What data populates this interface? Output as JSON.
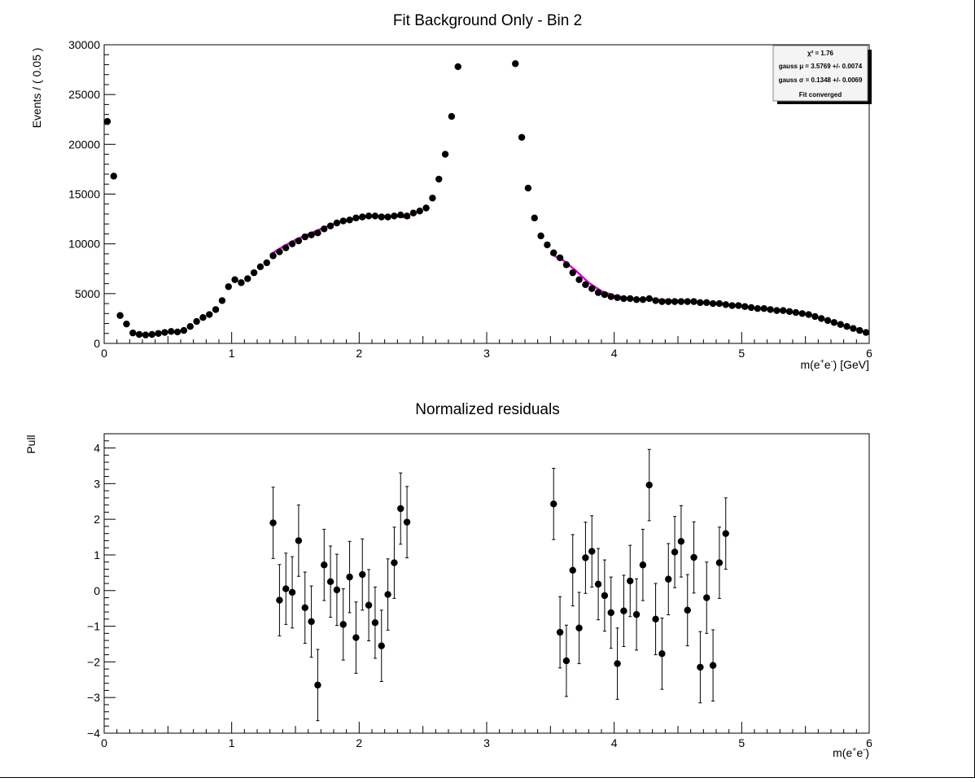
{
  "chart_data": [
    {
      "type": "scatter",
      "title": "Fit Background Only - Bin 2",
      "xlabel_main": "m(e",
      "xlabel_sup1": "+",
      "xlabel_mid": "e",
      "xlabel_sup2": "-",
      "xlabel_tail": ") [GeV]",
      "ylabel": "Events / ( 0.05 )",
      "xlim": [
        0,
        6
      ],
      "ylim": [
        0,
        30000
      ],
      "xticks": [
        "0",
        "1",
        "2",
        "3",
        "4",
        "5",
        "6"
      ],
      "yticks": [
        "0",
        "5000",
        "10000",
        "15000",
        "20000",
        "25000",
        "30000"
      ],
      "grid": false,
      "series": [
        {
          "kind": "points",
          "x": [
            0.025,
            0.075,
            0.125,
            0.175,
            0.225,
            0.275,
            0.325,
            0.375,
            0.425,
            0.475,
            0.525,
            0.575,
            0.625,
            0.675,
            0.725,
            0.775,
            0.825,
            0.875,
            0.925,
            0.975,
            1.025,
            1.075,
            1.125,
            1.175,
            1.225,
            1.275,
            1.325,
            1.375,
            1.425,
            1.475,
            1.525,
            1.575,
            1.625,
            1.675,
            1.725,
            1.775,
            1.825,
            1.875,
            1.925,
            1.975,
            2.025,
            2.075,
            2.125,
            2.175,
            2.225,
            2.275,
            2.325,
            2.375,
            2.425,
            2.475,
            2.525,
            2.575,
            2.625,
            2.675,
            2.725,
            2.775,
            3.225,
            3.275,
            3.325,
            3.375,
            3.425,
            3.475,
            3.525,
            3.575,
            3.625,
            3.675,
            3.725,
            3.775,
            3.825,
            3.875,
            3.925,
            3.975,
            4.025,
            4.075,
            4.125,
            4.175,
            4.225,
            4.275,
            4.325,
            4.375,
            4.425,
            4.475,
            4.525,
            4.575,
            4.625,
            4.675,
            4.725,
            4.775,
            4.825,
            4.875,
            4.925,
            4.975,
            5.025,
            5.075,
            5.125,
            5.175,
            5.225,
            5.275,
            5.325,
            5.375,
            5.425,
            5.475,
            5.525,
            5.575,
            5.625,
            5.675,
            5.725,
            5.775,
            5.825,
            5.875,
            5.925,
            5.975
          ],
          "y": [
            22300,
            16800,
            2800,
            1950,
            1050,
            900,
            850,
            900,
            1000,
            1100,
            1200,
            1150,
            1300,
            1700,
            2200,
            2600,
            2900,
            3400,
            4300,
            5700,
            6400,
            6100,
            6500,
            7100,
            7700,
            8100,
            8800,
            9200,
            9600,
            10000,
            10300,
            10700,
            10900,
            11100,
            11500,
            11800,
            12100,
            12300,
            12400,
            12600,
            12700,
            12800,
            12800,
            12700,
            12700,
            12800,
            12900,
            12800,
            13100,
            13300,
            13600,
            14600,
            16500,
            19000,
            22800,
            27800,
            28100,
            20700,
            15600,
            12600,
            10800,
            9900,
            9100,
            8600,
            7900,
            7100,
            6400,
            5900,
            5500,
            5100,
            4900,
            4700,
            4600,
            4500,
            4500,
            4400,
            4400,
            4500,
            4300,
            4200,
            4200,
            4200,
            4200,
            4200,
            4200,
            4100,
            4100,
            4000,
            4000,
            3900,
            3800,
            3800,
            3700,
            3600,
            3500,
            3500,
            3400,
            3300,
            3300,
            3200,
            3100,
            3000,
            2900,
            2700,
            2500,
            2300,
            2100,
            1900,
            1700,
            1500,
            1300,
            1100
          ]
        },
        {
          "kind": "fit",
          "color": "#e000d8",
          "x": [
            1.3,
            1.4,
            1.5,
            1.6,
            1.7,
            1.8,
            1.9,
            2.0,
            2.1,
            2.2,
            2.3,
            2.4
          ],
          "y": [
            8900,
            9700,
            10400,
            10950,
            11500,
            12000,
            12350,
            12600,
            12750,
            12800,
            12750,
            12600
          ]
        },
        {
          "kind": "fit",
          "color": "#e000d8",
          "x": [
            3.5,
            3.6,
            3.7,
            3.8,
            3.9,
            4.0,
            4.1,
            4.2,
            4.3,
            4.4,
            4.5,
            4.6,
            4.7,
            4.8,
            4.9
          ],
          "y": [
            9000,
            8350,
            7300,
            6100,
            5250,
            4800,
            4550,
            4450,
            4400,
            4350,
            4300,
            4250,
            4150,
            4050,
            3950
          ]
        }
      ],
      "stats_box": {
        "lines": [
          "χ² = 1.76",
          "gauss μ = 3.5769 +/- 0.0074",
          "gauss σ = 0.1348 +/- 0.0069",
          "Fit converged"
        ]
      }
    },
    {
      "type": "scatter",
      "title": "Normalized residuals",
      "xlabel_main": "m(e",
      "xlabel_sup1": "+",
      "xlabel_mid": "e",
      "xlabel_sup2": "-",
      "xlabel_tail": ")",
      "ylabel": "Pull",
      "xlim": [
        0,
        6
      ],
      "ylim": [
        -4,
        4.4
      ],
      "xticks": [
        "0",
        "1",
        "2",
        "3",
        "4",
        "5",
        "6"
      ],
      "yticks": [
        "−4",
        "−3",
        "−2",
        "−1",
        "0",
        "1",
        "2",
        "3",
        "4"
      ],
      "grid": false,
      "series": [
        {
          "kind": "points_with_errors",
          "error": 1,
          "x": [
            1.325,
            1.375,
            1.425,
            1.475,
            1.525,
            1.575,
            1.625,
            1.675,
            1.725,
            1.775,
            1.825,
            1.875,
            1.925,
            1.975,
            2.025,
            2.075,
            2.125,
            2.175,
            2.225,
            2.275,
            2.325,
            2.375,
            3.525,
            3.575,
            3.625,
            3.675,
            3.725,
            3.775,
            3.825,
            3.875,
            3.925,
            3.975,
            4.025,
            4.075,
            4.125,
            4.175,
            4.225,
            4.275,
            4.325,
            4.375,
            4.425,
            4.475,
            4.525,
            4.575,
            4.625,
            4.675,
            4.725,
            4.775,
            4.825,
            4.875
          ],
          "y": [
            1.9,
            -0.27,
            0.05,
            -0.05,
            1.4,
            -0.48,
            -0.87,
            -2.65,
            0.72,
            0.25,
            0.02,
            -0.95,
            0.38,
            -1.32,
            0.45,
            -0.41,
            -0.9,
            -1.55,
            -0.11,
            0.78,
            2.3,
            1.92,
            2.43,
            -1.17,
            -1.97,
            0.57,
            -1.05,
            0.92,
            1.1,
            0.18,
            -0.14,
            -0.62,
            -2.05,
            -0.57,
            0.27,
            -0.67,
            0.72,
            2.96,
            -0.8,
            -1.77,
            0.32,
            1.08,
            1.38,
            -0.55,
            0.93,
            -2.15,
            -0.2,
            -2.1,
            0.78,
            1.6
          ]
        }
      ]
    }
  ]
}
